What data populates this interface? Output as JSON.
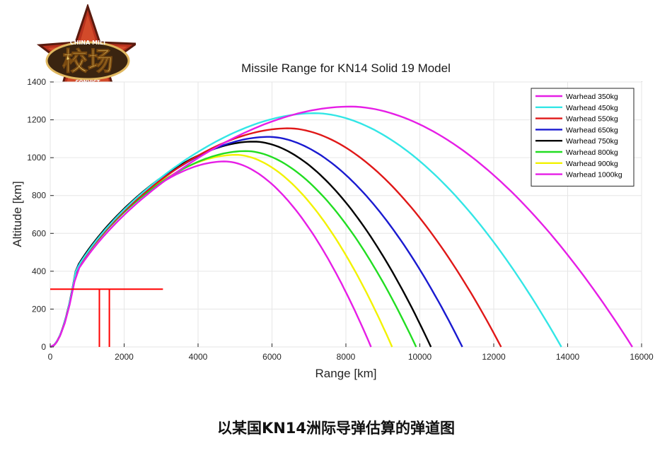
{
  "logo": {
    "main_text": "校场",
    "top_text": "CHINA MILI",
    "bottom_text": "CONVICT"
  },
  "caption": "以某国KN14洲际导弹估算的弹道图",
  "chart_data": {
    "type": "line",
    "title": "Missile Range for KN14 Solid 19 Model",
    "xlabel": "Range [km]",
    "ylabel": "Altitude [km]",
    "xlim": [
      0,
      16000
    ],
    "ylim": [
      0,
      1400
    ],
    "xticks": [
      0,
      2000,
      4000,
      6000,
      8000,
      10000,
      12000,
      14000,
      16000
    ],
    "yticks": [
      0,
      200,
      400,
      600,
      800,
      1000,
      1200,
      1400
    ],
    "grid": true,
    "legend_position": "top-right",
    "series": [
      {
        "name": "Warhead 350kg",
        "color": "#e61ee6",
        "peak_x": 8130,
        "peak_y": 1270,
        "end_x": 15750
      },
      {
        "name": "Warhead 450kg",
        "color": "#33e6e6",
        "peak_x": 7170,
        "peak_y": 1235,
        "end_x": 13830
      },
      {
        "name": "Warhead 550kg",
        "color": "#e01818",
        "peak_x": 6450,
        "peak_y": 1155,
        "end_x": 12200
      },
      {
        "name": "Warhead 650kg",
        "color": "#1a1ad0",
        "peak_x": 5920,
        "peak_y": 1110,
        "end_x": 11150
      },
      {
        "name": "Warhead 750kg",
        "color": "#000000",
        "peak_x": 5520,
        "peak_y": 1085,
        "end_x": 10300
      },
      {
        "name": "Warhead 800kg",
        "color": "#22dd22",
        "peak_x": 5300,
        "peak_y": 1035,
        "end_x": 9900
      },
      {
        "name": "Warhead 900kg",
        "color": "#f2f200",
        "peak_x": 5030,
        "peak_y": 1015,
        "end_x": 9250
      },
      {
        "name": "Warhead 1000kg",
        "color": "#e61ee6",
        "peak_x": 4730,
        "peak_y": 980,
        "end_x": 8680
      }
    ],
    "annotation": {
      "color": "#ff0000",
      "horizontal_line": {
        "y": 305,
        "x_from": 0,
        "x_to": 3050
      },
      "vertical_lines": [
        {
          "x": 1330,
          "y_from": 0,
          "y_to": 305
        },
        {
          "x": 1600,
          "y_from": 0,
          "y_to": 305
        }
      ]
    }
  }
}
